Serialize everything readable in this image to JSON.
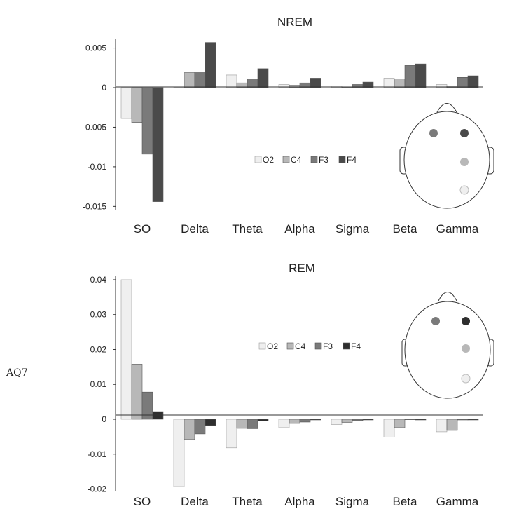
{
  "side_label": "AQ7",
  "colors": {
    "O2": "#efefef",
    "C4": "#b8b8b8",
    "F3": "#7a7a7a",
    "F4": "#4a4a4a",
    "F4_rem_legend": "#2e2e2e",
    "head_outline": "#333333",
    "axis": "#333333"
  },
  "chart_data": [
    {
      "type": "bar",
      "title": "NREM",
      "categories": [
        "SO",
        "Delta",
        "Theta",
        "Alpha",
        "Sigma",
        "Beta",
        "Gamma"
      ],
      "series": [
        {
          "name": "O2",
          "values": [
            -0.0039,
            0.0,
            0.0016,
            0.0004,
            0.0002,
            0.0012,
            0.0004
          ]
        },
        {
          "name": "C4",
          "values": [
            -0.0044,
            0.0019,
            0.0006,
            0.0003,
            0.0001,
            0.0011,
            0.0002
          ]
        },
        {
          "name": "F3",
          "values": [
            -0.0084,
            0.002,
            0.0011,
            0.0006,
            0.0004,
            0.0028,
            0.0013
          ]
        },
        {
          "name": "F4",
          "values": [
            -0.0144,
            0.0057,
            0.0024,
            0.0012,
            0.0007,
            0.003,
            0.0015
          ]
        }
      ],
      "ylim": [
        -0.0155,
        0.0062
      ],
      "yticks": [
        "0.005",
        "0",
        "-0.005",
        "-0.01",
        "-0.015"
      ],
      "ytick_values": [
        0.005,
        0,
        -0.005,
        -0.01,
        -0.015
      ],
      "legend": [
        "O2",
        "C4",
        "F3",
        "F4"
      ],
      "grid": false
    },
    {
      "type": "bar",
      "title": "REM",
      "categories": [
        "SO",
        "Delta",
        "Theta",
        "Alpha",
        "Sigma",
        "Beta",
        "Gamma"
      ],
      "series": [
        {
          "name": "O2",
          "values": [
            0.04,
            -0.0193,
            -0.0082,
            -0.0024,
            -0.0015,
            -0.0051,
            -0.0036
          ]
        },
        {
          "name": "C4",
          "values": [
            0.0158,
            -0.0058,
            -0.0026,
            -0.0012,
            -0.0009,
            -0.0024,
            -0.0032
          ]
        },
        {
          "name": "F3",
          "values": [
            0.0078,
            -0.0042,
            -0.0027,
            -0.0008,
            -0.0004,
            -0.0001,
            -0.0002
          ]
        },
        {
          "name": "F4",
          "values": [
            0.0022,
            -0.0018,
            -0.0005,
            -0.0002,
            -0.0002,
            -0.0002,
            -0.0002
          ]
        }
      ],
      "ylim": [
        -0.0205,
        0.0412
      ],
      "yticks": [
        "0.04",
        "0.03",
        "0.02",
        "0.01",
        "0",
        "-0.01",
        "-0.02"
      ],
      "ytick_values": [
        0.04,
        0.03,
        0.02,
        0.01,
        0,
        -0.01,
        -0.02
      ],
      "legend": [
        "O2",
        "C4",
        "F3",
        "F4"
      ],
      "grid": false
    }
  ]
}
